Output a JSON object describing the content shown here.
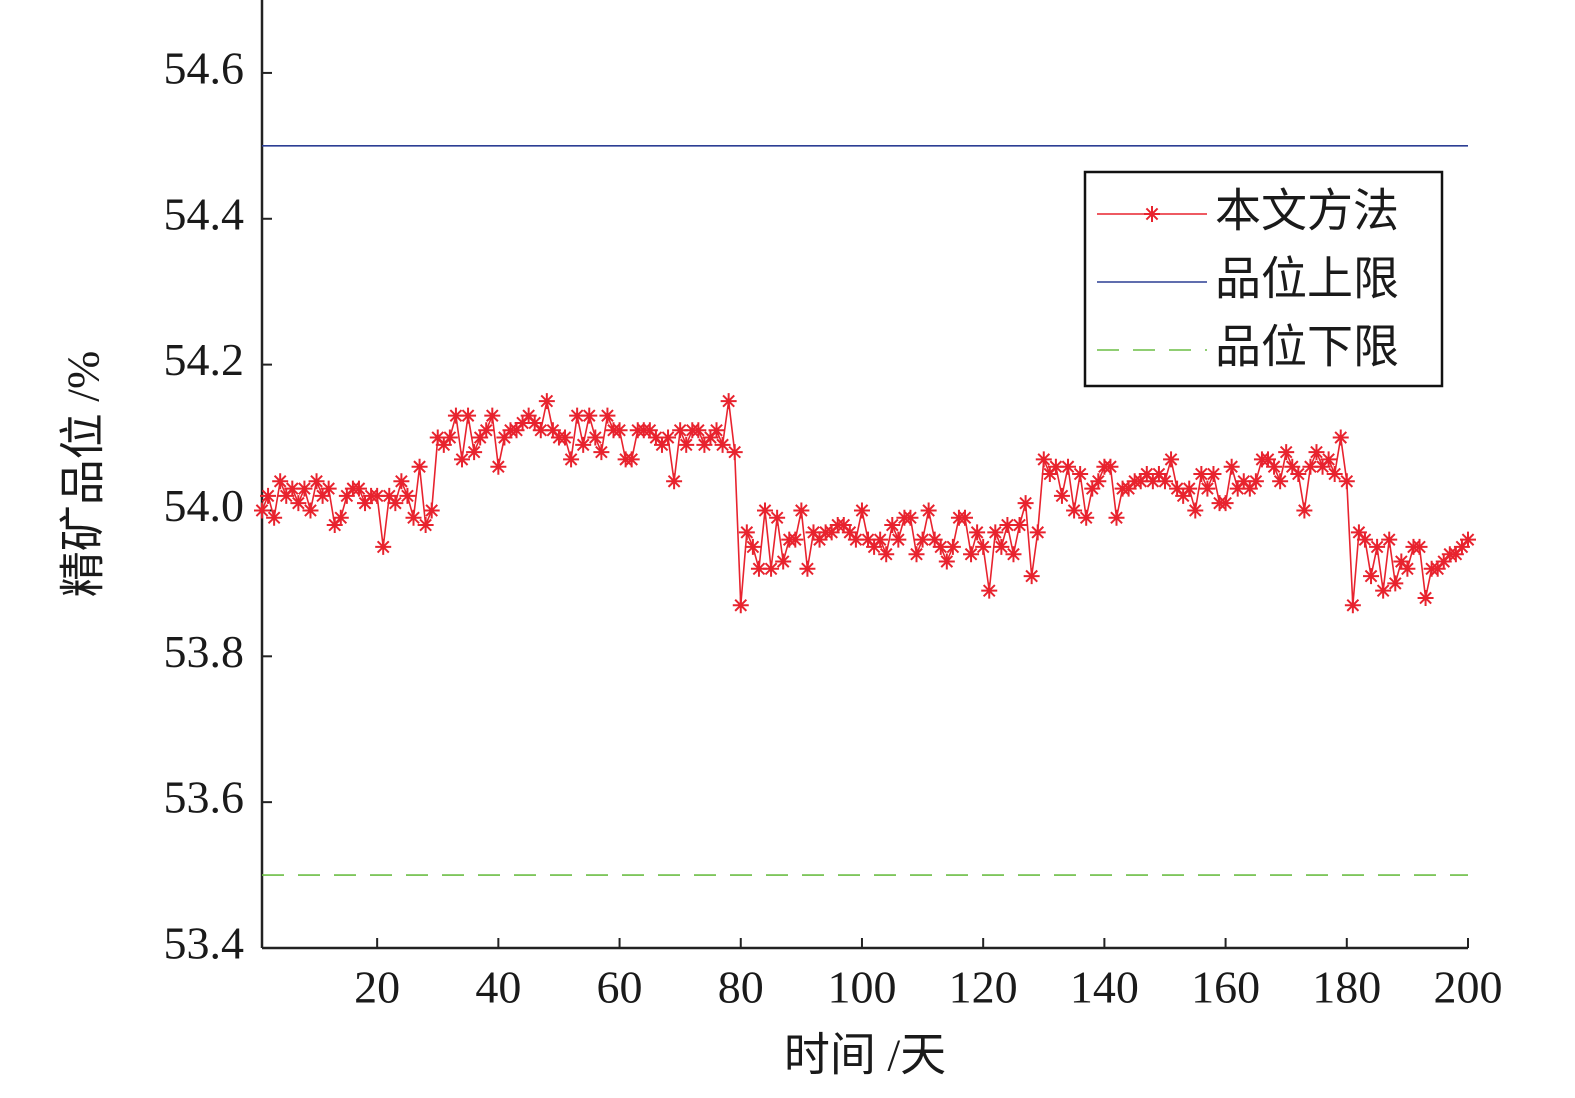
{
  "chart_data": {
    "type": "line",
    "x_label": "时间 /天",
    "y_label": "精矿品位 /%",
    "x": [
      1,
      2,
      3,
      4,
      5,
      6,
      7,
      8,
      9,
      10,
      11,
      12,
      13,
      14,
      15,
      16,
      17,
      18,
      19,
      20,
      21,
      22,
      23,
      24,
      25,
      26,
      27,
      28,
      29,
      30,
      31,
      32,
      33,
      34,
      35,
      36,
      37,
      38,
      39,
      40,
      41,
      42,
      43,
      44,
      45,
      46,
      47,
      48,
      49,
      50,
      51,
      52,
      53,
      54,
      55,
      56,
      57,
      58,
      59,
      60,
      61,
      62,
      63,
      64,
      65,
      66,
      67,
      68,
      69,
      70,
      71,
      72,
      73,
      74,
      75,
      76,
      77,
      78,
      79,
      80,
      81,
      82,
      83,
      84,
      85,
      86,
      87,
      88,
      89,
      90,
      91,
      92,
      93,
      94,
      95,
      96,
      97,
      98,
      99,
      100,
      101,
      102,
      103,
      104,
      105,
      106,
      107,
      108,
      109,
      110,
      111,
      112,
      113,
      114,
      115,
      116,
      117,
      118,
      119,
      120,
      121,
      122,
      123,
      124,
      125,
      126,
      127,
      128,
      129,
      130,
      131,
      132,
      133,
      134,
      135,
      136,
      137,
      138,
      139,
      140,
      141,
      142,
      143,
      144,
      145,
      146,
      147,
      148,
      149,
      150,
      151,
      152,
      153,
      154,
      155,
      156,
      157,
      158,
      159,
      160,
      161,
      162,
      163,
      164,
      165,
      166,
      167,
      168,
      169,
      170,
      171,
      172,
      173,
      174,
      175,
      176,
      177,
      178,
      179,
      180,
      181,
      182,
      183,
      184,
      185,
      186,
      187,
      188,
      189,
      190,
      191,
      192,
      193,
      194,
      195,
      196,
      197,
      198,
      199,
      200
    ],
    "series": [
      {
        "name": "本文方法",
        "color": "#e8232e",
        "marker": "asterisk",
        "values": [
          54.0,
          54.02,
          53.99,
          54.04,
          54.02,
          54.03,
          54.01,
          54.03,
          54.0,
          54.04,
          54.02,
          54.03,
          53.98,
          53.99,
          54.02,
          54.03,
          54.03,
          54.01,
          54.02,
          54.02,
          53.95,
          54.02,
          54.01,
          54.04,
          54.02,
          53.99,
          54.06,
          53.98,
          54.0,
          54.1,
          54.09,
          54.1,
          54.13,
          54.07,
          54.13,
          54.08,
          54.1,
          54.11,
          54.13,
          54.06,
          54.1,
          54.11,
          54.11,
          54.12,
          54.13,
          54.12,
          54.11,
          54.15,
          54.11,
          54.1,
          54.1,
          54.07,
          54.13,
          54.09,
          54.13,
          54.1,
          54.08,
          54.13,
          54.11,
          54.11,
          54.07,
          54.07,
          54.11,
          54.11,
          54.11,
          54.1,
          54.09,
          54.1,
          54.04,
          54.11,
          54.09,
          54.11,
          54.11,
          54.09,
          54.1,
          54.11,
          54.09,
          54.15,
          54.08,
          53.87,
          53.97,
          53.95,
          53.92,
          54.0,
          53.92,
          53.99,
          53.93,
          53.96,
          53.96,
          54.0,
          53.92,
          53.97,
          53.96,
          53.97,
          53.97,
          53.98,
          53.98,
          53.97,
          53.96,
          54.0,
          53.96,
          53.95,
          53.96,
          53.94,
          53.98,
          53.96,
          53.99,
          53.99,
          53.94,
          53.96,
          54.0,
          53.96,
          53.95,
          53.93,
          53.95,
          53.99,
          53.99,
          53.94,
          53.97,
          53.95,
          53.89,
          53.97,
          53.95,
          53.98,
          53.94,
          53.98,
          54.01,
          53.91,
          53.97,
          54.07,
          54.05,
          54.06,
          54.02,
          54.06,
          54.0,
          54.05,
          53.99,
          54.03,
          54.04,
          54.06,
          54.06,
          53.99,
          54.03,
          54.03,
          54.04,
          54.04,
          54.05,
          54.04,
          54.05,
          54.04,
          54.07,
          54.03,
          54.02,
          54.03,
          54.0,
          54.05,
          54.03,
          54.05,
          54.01,
          54.01,
          54.06,
          54.03,
          54.04,
          54.03,
          54.04,
          54.07,
          54.07,
          54.06,
          54.04,
          54.08,
          54.06,
          54.05,
          54.0,
          54.06,
          54.08,
          54.06,
          54.07,
          54.05,
          54.1,
          54.04,
          53.87,
          53.97,
          53.96,
          53.91,
          53.95,
          53.89,
          53.96,
          53.9,
          53.93,
          53.92,
          53.95,
          53.95,
          53.88,
          53.92,
          53.92,
          53.93,
          53.94,
          53.94,
          53.95,
          53.96
        ]
      },
      {
        "name": "品位上限",
        "color": "#2c3e94",
        "x": [
          1,
          200
        ],
        "values": [
          54.5,
          54.5
        ]
      },
      {
        "name": "品位下限",
        "color": "#6cbd45",
        "dash": true,
        "x": [
          1,
          200
        ],
        "values": [
          53.5,
          53.5
        ]
      }
    ],
    "xlim": [
      1,
      200
    ],
    "xticks": [
      20,
      40,
      60,
      80,
      100,
      120,
      140,
      160,
      180,
      200
    ],
    "ylim": [
      53.4,
      54.7
    ],
    "yticks": [
      53.4,
      53.6,
      53.8,
      {
        "value": 54,
        "label": "54.0"
      },
      54.2,
      54.4,
      54.6
    ],
    "legend": "upper right"
  }
}
